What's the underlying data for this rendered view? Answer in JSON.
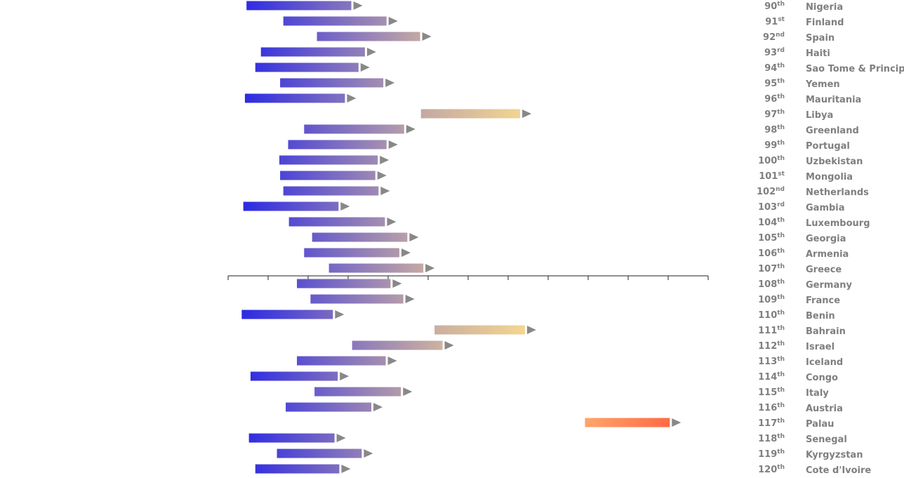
{
  "chart_data": {
    "type": "bar",
    "bar_style": "floating range bars with arrowheads",
    "x_range": [
      0,
      6
    ],
    "colors": {
      "low": "#1f1fe8",
      "mid": "#c3a8a4",
      "high": "#ffe08c",
      "alt_start": "#ffa46c",
      "alt_end": "#ff6a44",
      "arrow": "#888888"
    },
    "rows": [
      {
        "rank": 90,
        "suffix": "th",
        "country": "Nigeria",
        "start": 0.23,
        "end": 1.54
      },
      {
        "rank": 91,
        "suffix": "st",
        "country": "Finland",
        "start": 0.69,
        "end": 1.98
      },
      {
        "rank": 92,
        "suffix": "nd",
        "country": "Spain",
        "start": 1.11,
        "end": 2.4
      },
      {
        "rank": 93,
        "suffix": "rd",
        "country": "Haiti",
        "start": 0.41,
        "end": 1.71
      },
      {
        "rank": 94,
        "suffix": "th",
        "country": "Sao Tome & Principe",
        "start": 0.34,
        "end": 1.63
      },
      {
        "rank": 95,
        "suffix": "th",
        "country": "Yemen",
        "start": 0.65,
        "end": 1.94
      },
      {
        "rank": 96,
        "suffix": "th",
        "country": "Mauritania",
        "start": 0.21,
        "end": 1.46
      },
      {
        "rank": 97,
        "suffix": "th",
        "country": "Libya",
        "start": 2.41,
        "end": 3.65
      },
      {
        "rank": 98,
        "suffix": "th",
        "country": "Greenland",
        "start": 0.95,
        "end": 2.2
      },
      {
        "rank": 99,
        "suffix": "th",
        "country": "Portugal",
        "start": 0.75,
        "end": 1.98
      },
      {
        "rank": 100,
        "suffix": "th",
        "country": "Uzbekistan",
        "start": 0.64,
        "end": 1.87
      },
      {
        "rank": 101,
        "suffix": "st",
        "country": "Mongolia",
        "start": 0.65,
        "end": 1.84
      },
      {
        "rank": 102,
        "suffix": "nd",
        "country": "Netherlands",
        "start": 0.69,
        "end": 1.88
      },
      {
        "rank": 103,
        "suffix": "rd",
        "country": "Gambia",
        "start": 0.19,
        "end": 1.38
      },
      {
        "rank": 104,
        "suffix": "th",
        "country": "Luxembourg",
        "start": 0.76,
        "end": 1.96
      },
      {
        "rank": 105,
        "suffix": "th",
        "country": "Georgia",
        "start": 1.05,
        "end": 2.24
      },
      {
        "rank": 106,
        "suffix": "th",
        "country": "Armenia",
        "start": 0.95,
        "end": 2.14
      },
      {
        "rank": 107,
        "suffix": "th",
        "country": "Greece",
        "start": 1.26,
        "end": 2.44
      },
      {
        "rank": 108,
        "suffix": "th",
        "country": "Germany",
        "start": 0.86,
        "end": 2.03
      },
      {
        "rank": 109,
        "suffix": "th",
        "country": "France",
        "start": 1.03,
        "end": 2.19
      },
      {
        "rank": 110,
        "suffix": "th",
        "country": "Benin",
        "start": 0.17,
        "end": 1.31
      },
      {
        "rank": 111,
        "suffix": "th",
        "country": "Bahrain",
        "start": 2.58,
        "end": 3.71
      },
      {
        "rank": 112,
        "suffix": "th",
        "country": "Israel",
        "start": 1.55,
        "end": 2.68
      },
      {
        "rank": 113,
        "suffix": "th",
        "country": "Iceland",
        "start": 0.86,
        "end": 1.97
      },
      {
        "rank": 114,
        "suffix": "th",
        "country": "Congo",
        "start": 0.28,
        "end": 1.37
      },
      {
        "rank": 115,
        "suffix": "th",
        "country": "Italy",
        "start": 1.08,
        "end": 2.16
      },
      {
        "rank": 116,
        "suffix": "th",
        "country": "Austria",
        "start": 0.72,
        "end": 1.79
      },
      {
        "rank": 117,
        "suffix": "th",
        "country": "Palau",
        "start": 4.46,
        "end": 5.52,
        "palette": "alt"
      },
      {
        "rank": 118,
        "suffix": "th",
        "country": "Senegal",
        "start": 0.26,
        "end": 1.33
      },
      {
        "rank": 119,
        "suffix": "th",
        "country": "Kyrgyzstan",
        "start": 0.61,
        "end": 1.67
      },
      {
        "rank": 120,
        "suffix": "th",
        "country": "Cote d'Ivoire",
        "start": 0.34,
        "end": 1.39
      }
    ]
  }
}
